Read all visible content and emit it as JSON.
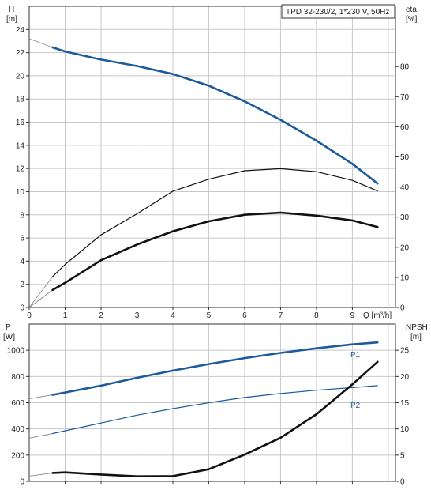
{
  "chart_data": [
    {
      "type": "line",
      "title": "TPD 32-230/2, 1*230 V, 50Hz",
      "xlabel": "Q [m³/h]",
      "xlim": [
        0,
        10.2
      ],
      "x_ticks": [
        "0",
        "1",
        "2",
        "3",
        "4",
        "5",
        "6",
        "7",
        "8",
        "9"
      ],
      "y_left": {
        "name": "H",
        "unit": "[m]",
        "lim": [
          0,
          26
        ],
        "ticks": [
          "0",
          "2",
          "4",
          "6",
          "8",
          "10",
          "12",
          "14",
          "16",
          "18",
          "20",
          "22",
          "24"
        ]
      },
      "y_right": {
        "name": "eta",
        "unit": "[%]",
        "lim": [
          0,
          100
        ],
        "ticks": [
          "0",
          "10",
          "20",
          "30",
          "40",
          "50",
          "60",
          "70",
          "80"
        ]
      },
      "grid": true,
      "series": [
        {
          "axis": "left",
          "color": "#1b5a9b",
          "width": 2.6,
          "x": [
            0.65,
            1,
            2,
            3,
            4,
            5,
            6,
            7,
            8,
            9,
            9.7
          ],
          "y": [
            22.45,
            22.1,
            21.4,
            20.85,
            20.15,
            19.15,
            17.8,
            16.2,
            14.4,
            12.4,
            10.7
          ],
          "ext_x": [
            0,
            0.65
          ],
          "ext_y": [
            23.2,
            22.45
          ]
        },
        {
          "axis": "right",
          "color": "#111111",
          "width": 1.2,
          "x": [
            0.65,
            1,
            2,
            3,
            4,
            5,
            6,
            7,
            8,
            9,
            9.7
          ],
          "y": [
            10.2,
            14.3,
            24.1,
            31.1,
            38.6,
            42.6,
            45.4,
            46.1,
            45.1,
            42.2,
            38.7
          ],
          "ext_x": [
            0,
            0.65
          ],
          "ext_y": [
            0,
            10.2
          ]
        },
        {
          "axis": "right",
          "color": "#111111",
          "width": 2.6,
          "x": [
            0.65,
            1,
            2,
            3,
            4,
            5,
            6,
            7,
            8,
            9,
            9.7
          ],
          "y": [
            5.8,
            8.2,
            15.7,
            20.9,
            25.3,
            28.6,
            30.8,
            31.5,
            30.5,
            28.9,
            26.7
          ],
          "ext_x": [
            0,
            0.65
          ],
          "ext_y": [
            0,
            5.8
          ]
        }
      ]
    },
    {
      "type": "line",
      "title": "",
      "xlim": [
        0,
        10.2
      ],
      "y_left": {
        "name": "P",
        "unit": "[W]",
        "lim": [
          0,
          1200
        ],
        "ticks": [
          "0",
          "200",
          "400",
          "600",
          "800",
          "1000"
        ]
      },
      "y_right": {
        "name": "NPSH",
        "unit": "[m]",
        "lim": [
          0,
          30
        ],
        "ticks": [
          "0",
          "5",
          "10",
          "15",
          "20",
          "25"
        ]
      },
      "grid": true,
      "series": [
        {
          "name": "P1",
          "axis": "left",
          "color": "#1b5a9b",
          "width": 2.6,
          "x": [
            0.65,
            2,
            3,
            4,
            5,
            6,
            7,
            8,
            9,
            9.7
          ],
          "y": [
            660,
            730,
            790,
            845,
            895,
            940,
            980,
            1015,
            1045,
            1060
          ],
          "ext_x": [
            0,
            0.65
          ],
          "ext_y": [
            630,
            660
          ]
        },
        {
          "name": "P2",
          "axis": "left",
          "color": "#1b5a9b",
          "width": 1.2,
          "x": [
            0.65,
            2,
            3,
            4,
            5,
            6,
            7,
            8,
            9,
            9.7
          ],
          "y": [
            365,
            445,
            505,
            555,
            600,
            640,
            670,
            695,
            715,
            730
          ],
          "ext_x": [
            0,
            0.65
          ],
          "ext_y": [
            330,
            365
          ]
        },
        {
          "axis": "right",
          "color": "#111111",
          "width": 2.6,
          "x": [
            0.65,
            1,
            2,
            3,
            4,
            5,
            6,
            7,
            8,
            9,
            9.7
          ],
          "y": [
            1.6,
            1.7,
            1.3,
            0.95,
            1.0,
            2.3,
            5.1,
            8.3,
            12.8,
            18.5,
            22.8
          ],
          "ext_x": [
            0,
            0.65
          ],
          "ext_y": [
            1.0,
            1.6
          ]
        }
      ]
    }
  ]
}
